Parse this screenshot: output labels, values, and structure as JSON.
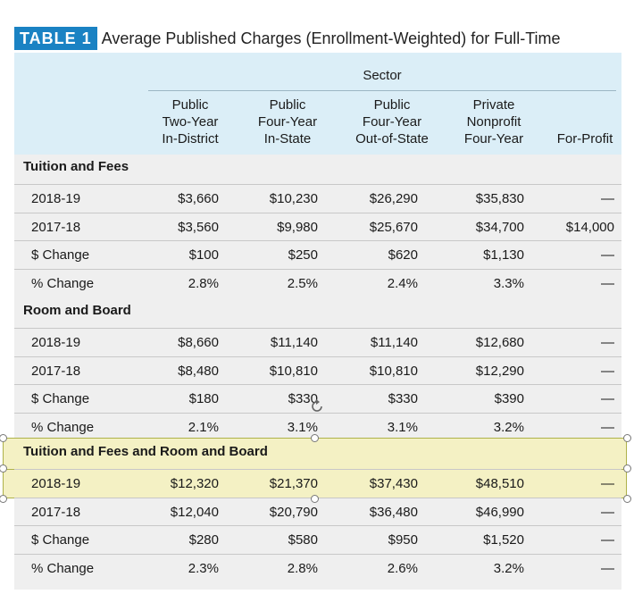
{
  "title": {
    "badge": "TABLE 1",
    "text": "Average Published Charges (Enrollment-Weighted) for Full-Time"
  },
  "header": {
    "sector": "Sector",
    "columns": [
      [
        "Public",
        "Two-Year",
        "In-District"
      ],
      [
        "Public",
        "Four-Year",
        "In-State"
      ],
      [
        "Public",
        "Four-Year",
        "Out-of-State"
      ],
      [
        "Private",
        "Nonprofit",
        "Four-Year"
      ],
      [
        "For-Profit"
      ]
    ]
  },
  "sections": [
    {
      "label": "Tuition and Fees",
      "rows": [
        {
          "label": "2018-19",
          "values": [
            "$3,660",
            "$10,230",
            "$26,290",
            "$35,830",
            "—"
          ]
        },
        {
          "label": "2017-18",
          "values": [
            "$3,560",
            "$9,980",
            "$25,670",
            "$34,700",
            "$14,000"
          ]
        },
        {
          "label": "$ Change",
          "values": [
            "$100",
            "$250",
            "$620",
            "$1,130",
            "—"
          ]
        },
        {
          "label": "% Change",
          "values": [
            "2.8%",
            "2.5%",
            "2.4%",
            "3.3%",
            "—"
          ]
        }
      ]
    },
    {
      "label": "Room and Board",
      "rows": [
        {
          "label": "2018-19",
          "values": [
            "$8,660",
            "$11,140",
            "$11,140",
            "$12,680",
            "—"
          ]
        },
        {
          "label": "2017-18",
          "values": [
            "$8,480",
            "$10,810",
            "$10,810",
            "$12,290",
            "—"
          ]
        },
        {
          "label": "$ Change",
          "values": [
            "$180",
            "$330",
            "$330",
            "$390",
            "—"
          ]
        },
        {
          "label": "% Change",
          "values": [
            "2.1%",
            "3.1%",
            "3.1%",
            "3.2%",
            "—"
          ]
        }
      ]
    },
    {
      "label": "Tuition and Fees and Room and Board",
      "rows": [
        {
          "label": "2018-19",
          "values": [
            "$12,320",
            "$21,370",
            "$37,430",
            "$48,510",
            "—"
          ]
        },
        {
          "label": "2017-18",
          "values": [
            "$12,040",
            "$20,790",
            "$36,480",
            "$46,990",
            "—"
          ]
        },
        {
          "label": "$ Change",
          "values": [
            "$280",
            "$580",
            "$950",
            "$1,520",
            "—"
          ]
        },
        {
          "label": "% Change",
          "values": [
            "2.3%",
            "2.8%",
            "2.6%",
            "3.2%",
            "—"
          ]
        }
      ]
    }
  ]
}
